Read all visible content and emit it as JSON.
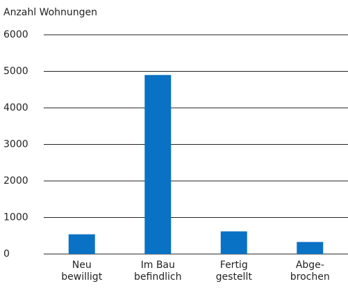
{
  "chart_data": {
    "type": "bar",
    "y_label": "Anzahl Wohnungen",
    "categories": [
      [
        "Neu",
        "bewilligt"
      ],
      [
        "Im Bau",
        "befindlich"
      ],
      [
        "Fertig",
        "gestellt"
      ],
      [
        "Abge-",
        "brochen"
      ]
    ],
    "values": [
      540,
      4900,
      620,
      330
    ],
    "color": "#0a72c4",
    "ylim": [
      0,
      6000
    ],
    "yticks": [
      0,
      1000,
      2000,
      3000,
      4000,
      5000,
      6000
    ],
    "grid": true
  }
}
